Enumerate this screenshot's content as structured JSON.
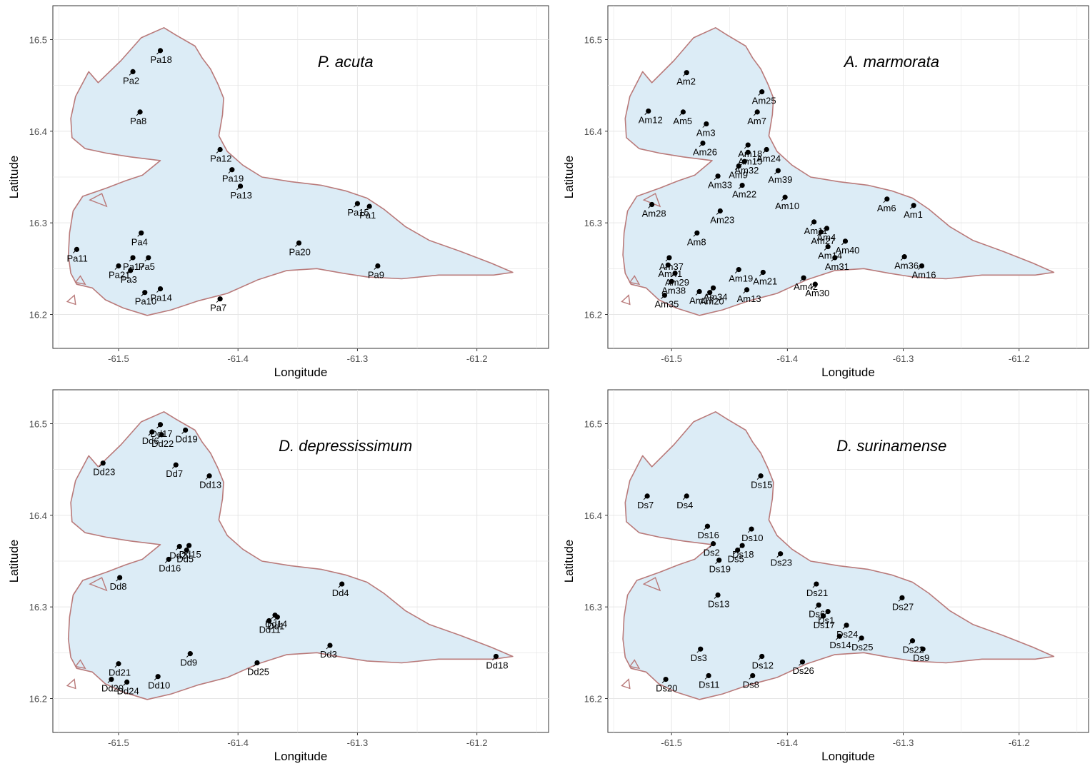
{
  "colors": {
    "land": "#dcecf6",
    "coast": "#b97a7a",
    "grid": "#e6e6e6",
    "point": "#000000"
  },
  "axes": {
    "xlabel": "Longitude",
    "ylabel": "Latitude",
    "xticks": [
      "-61.5",
      "-61.4",
      "-61.3",
      "-61.2"
    ],
    "yticks": [
      "16.2",
      "16.3",
      "16.4",
      "16.5"
    ]
  },
  "maps": [
    {
      "title": "P. acuta",
      "points": [
        [
          "Pa18",
          -61.465,
          16.488
        ],
        [
          "Pa2",
          -61.488,
          16.465
        ],
        [
          "Pa8",
          -61.482,
          16.421
        ],
        [
          "Pa12",
          -61.415,
          16.38
        ],
        [
          "Pa19",
          -61.405,
          16.358
        ],
        [
          "Pa13",
          -61.398,
          16.34
        ],
        [
          "Pa15",
          -61.3,
          16.321
        ],
        [
          "Pa1",
          -61.29,
          16.318
        ],
        [
          "Pa4",
          -61.481,
          16.289
        ],
        [
          "Pa20",
          -61.349,
          16.278
        ],
        [
          "Pa11",
          -61.535,
          16.271
        ],
        [
          "Pa17",
          -61.488,
          16.262
        ],
        [
          "Pa5",
          -61.475,
          16.262
        ],
        [
          "Pa21",
          -61.5,
          16.253
        ],
        [
          "Pa3",
          -61.49,
          16.248
        ],
        [
          "Pa9",
          -61.283,
          16.253
        ],
        [
          "Pa14",
          -61.465,
          16.228
        ],
        [
          "Pa10",
          -61.478,
          16.224
        ],
        [
          "Pa7",
          -61.415,
          16.217
        ]
      ]
    },
    {
      "title": "A. marmorata",
      "points": [
        [
          "Am2",
          -61.487,
          16.464
        ],
        [
          "Am25",
          -61.422,
          16.443
        ],
        [
          "Am12",
          -61.52,
          16.422
        ],
        [
          "Am5",
          -61.49,
          16.421
        ],
        [
          "Am7",
          -61.426,
          16.421
        ],
        [
          "Am3",
          -61.47,
          16.408
        ],
        [
          "Am18",
          -61.434,
          16.385
        ],
        [
          "Am24",
          -61.418,
          16.38
        ],
        [
          "Am26",
          -61.473,
          16.387
        ],
        [
          "Am15",
          -61.434,
          16.377
        ],
        [
          "Am32",
          -61.437,
          16.367
        ],
        [
          "Am9",
          -61.442,
          16.362
        ],
        [
          "Am39",
          -61.408,
          16.357
        ],
        [
          "Am33",
          -61.46,
          16.351
        ],
        [
          "Am22",
          -61.439,
          16.341
        ],
        [
          "Am10",
          -61.402,
          16.328
        ],
        [
          "Am6",
          -61.314,
          16.326
        ],
        [
          "Am1",
          -61.291,
          16.319
        ],
        [
          "Am28",
          -61.517,
          16.32
        ],
        [
          "Am23",
          -61.458,
          16.313
        ],
        [
          "Am11",
          -61.377,
          16.301
        ],
        [
          "Am4",
          -61.366,
          16.294
        ],
        [
          "Am27",
          -61.371,
          16.29
        ],
        [
          "Am8",
          -61.478,
          16.289
        ],
        [
          "Am40",
          -61.35,
          16.28
        ],
        [
          "Am14",
          -61.365,
          16.274
        ],
        [
          "Am37",
          -61.502,
          16.262
        ],
        [
          "Am36",
          -61.299,
          16.263
        ],
        [
          "Am31",
          -61.359,
          16.262
        ],
        [
          "Am19",
          -61.442,
          16.249
        ],
        [
          "Am16",
          -61.284,
          16.253
        ],
        [
          "Am29",
          -61.497,
          16.245
        ],
        [
          "Am41",
          -61.503,
          16.254
        ],
        [
          "Am21",
          -61.421,
          16.246
        ],
        [
          "Am42",
          -61.386,
          16.24
        ],
        [
          "Am34",
          -61.464,
          16.229
        ],
        [
          "Am38",
          -61.5,
          16.236
        ],
        [
          "Am30",
          -61.376,
          16.233
        ],
        [
          "Am13",
          -61.435,
          16.227
        ],
        [
          "Am17",
          -61.476,
          16.225
        ],
        [
          "Am20",
          -61.467,
          16.224
        ],
        [
          "Am35",
          -61.506,
          16.221
        ]
      ]
    },
    {
      "title": "D. depressissimum",
      "points": [
        [
          "Dd17",
          -61.465,
          16.499
        ],
        [
          "Dd19",
          -61.444,
          16.493
        ],
        [
          "Dd6",
          -61.472,
          16.491
        ],
        [
          "Dd22",
          -61.464,
          16.488
        ],
        [
          "Dd23",
          -61.513,
          16.457
        ],
        [
          "Dd7",
          -61.452,
          16.455
        ],
        [
          "Dd13",
          -61.424,
          16.443
        ],
        [
          "Dd2",
          -61.449,
          16.366
        ],
        [
          "Dd15",
          -61.441,
          16.367
        ],
        [
          "Dd5",
          -61.443,
          16.362
        ],
        [
          "Dd16",
          -61.458,
          16.352
        ],
        [
          "Dd8",
          -61.499,
          16.332
        ],
        [
          "Dd4",
          -61.313,
          16.325
        ],
        [
          "Dd14",
          -61.369,
          16.291
        ],
        [
          "Dd1",
          -61.367,
          16.289
        ],
        [
          "Dd11",
          -61.374,
          16.285
        ],
        [
          "Dd3",
          -61.323,
          16.258
        ],
        [
          "Dd9",
          -61.44,
          16.249
        ],
        [
          "Dd21",
          -61.5,
          16.238
        ],
        [
          "Dd25",
          -61.384,
          16.239
        ],
        [
          "Dd10",
          -61.467,
          16.224
        ],
        [
          "Dd20",
          -61.506,
          16.221
        ],
        [
          "Dd24",
          -61.493,
          16.218
        ],
        [
          "Dd18",
          -61.184,
          16.246
        ]
      ]
    },
    {
      "title": "D. surinamense",
      "points": [
        [
          "Ds15",
          -61.423,
          16.443
        ],
        [
          "Ds7",
          -61.521,
          16.421
        ],
        [
          "Ds4",
          -61.487,
          16.421
        ],
        [
          "Ds16",
          -61.469,
          16.388
        ],
        [
          "Ds10",
          -61.431,
          16.385
        ],
        [
          "Ds2",
          -61.464,
          16.369
        ],
        [
          "Ds18",
          -61.439,
          16.367
        ],
        [
          "Ds5",
          -61.443,
          16.362
        ],
        [
          "Ds19",
          -61.459,
          16.351
        ],
        [
          "Ds23",
          -61.406,
          16.358
        ],
        [
          "Ds21",
          -61.375,
          16.325
        ],
        [
          "Ds13",
          -61.46,
          16.313
        ],
        [
          "Ds6",
          -61.373,
          16.302
        ],
        [
          "Ds1",
          -61.365,
          16.295
        ],
        [
          "Ds27",
          -61.301,
          16.31
        ],
        [
          "Ds17",
          -61.369,
          16.29
        ],
        [
          "Ds24",
          -61.349,
          16.28
        ],
        [
          "Ds14",
          -61.355,
          16.268
        ],
        [
          "Ds25",
          -61.336,
          16.266
        ],
        [
          "Ds22",
          -61.292,
          16.263
        ],
        [
          "Ds9",
          -61.283,
          16.254
        ],
        [
          "Ds3",
          -61.475,
          16.254
        ],
        [
          "Ds12",
          -61.422,
          16.246
        ],
        [
          "Ds26",
          -61.387,
          16.24
        ],
        [
          "Ds11",
          -61.468,
          16.225
        ],
        [
          "Ds8",
          -61.43,
          16.225
        ],
        [
          "Ds20",
          -61.505,
          16.221
        ]
      ]
    }
  ]
}
